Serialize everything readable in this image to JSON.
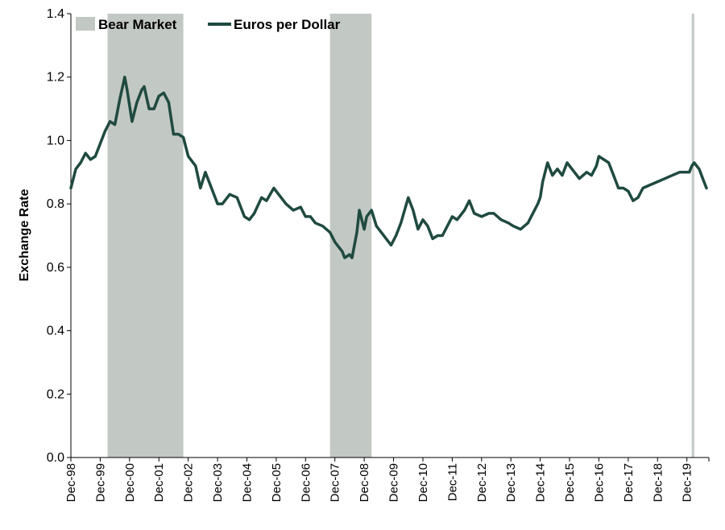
{
  "chart_data": {
    "type": "line",
    "title": "",
    "xlabel": "",
    "ylabel": "Exchange Rate",
    "ylim": [
      0,
      1.4
    ],
    "yticks": [
      0.0,
      0.2,
      0.4,
      0.6,
      0.8,
      1.0,
      1.2,
      1.4
    ],
    "ytick_labels": [
      "0.0",
      "0.2",
      "0.4",
      "0.6",
      "0.8",
      "1.0",
      "1.2",
      "1.4"
    ],
    "xlim": [
      "1998-12",
      "2020-09"
    ],
    "xticks": [
      {
        "date": "1998-12",
        "label": "Dec-98"
      },
      {
        "date": "1999-12",
        "label": "Dec-99"
      },
      {
        "date": "2000-12",
        "label": "Dec-00"
      },
      {
        "date": "2001-12",
        "label": "Dec-01"
      },
      {
        "date": "2002-12",
        "label": "Dec-02"
      },
      {
        "date": "2003-12",
        "label": "Dec-03"
      },
      {
        "date": "2004-12",
        "label": "Dec-04"
      },
      {
        "date": "2005-12",
        "label": "Dec-05"
      },
      {
        "date": "2006-12",
        "label": "Dec-06"
      },
      {
        "date": "2007-12",
        "label": "Dec-07"
      },
      {
        "date": "2008-12",
        "label": "Dec-08"
      },
      {
        "date": "2009-12",
        "label": "Dec-09"
      },
      {
        "date": "2010-12",
        "label": "Dec-10"
      },
      {
        "date": "2011-12",
        "label": "Dec-11"
      },
      {
        "date": "2012-12",
        "label": "Dec-12"
      },
      {
        "date": "2013-12",
        "label": "Dec-13"
      },
      {
        "date": "2014-12",
        "label": "Dec-14"
      },
      {
        "date": "2015-12",
        "label": "Dec-15"
      },
      {
        "date": "2016-12",
        "label": "Dec-16"
      },
      {
        "date": "2017-12",
        "label": "Dec-17"
      },
      {
        "date": "2018-12",
        "label": "Dec-18"
      },
      {
        "date": "2019-12",
        "label": "Dec-19"
      }
    ],
    "legend": {
      "placement": "top-left",
      "entries": [
        {
          "label": "Bear Market",
          "kind": "area",
          "color": "#c2c8c3"
        },
        {
          "label": "Euros per Dollar",
          "kind": "line",
          "color": "#1f4a40"
        }
      ]
    },
    "bear_markets": [
      {
        "start": "2000-03",
        "end": "2002-10"
      },
      {
        "start": "2007-10",
        "end": "2009-03"
      },
      {
        "start": "2020-02",
        "end": "2020-03"
      }
    ],
    "series": [
      {
        "name": "Euros per Dollar",
        "color": "#1f4a40",
        "points": [
          [
            "1998-12",
            0.85
          ],
          [
            "1999-02",
            0.91
          ],
          [
            "1999-04",
            0.93
          ],
          [
            "1999-06",
            0.96
          ],
          [
            "1999-08",
            0.94
          ],
          [
            "1999-10",
            0.95
          ],
          [
            "1999-12",
            0.99
          ],
          [
            "2000-02",
            1.03
          ],
          [
            "2000-04",
            1.06
          ],
          [
            "2000-06",
            1.05
          ],
          [
            "2000-08",
            1.13
          ],
          [
            "2000-10",
            1.2
          ],
          [
            "2000-11",
            1.16
          ],
          [
            "2001-01",
            1.06
          ],
          [
            "2001-03",
            1.12
          ],
          [
            "2001-05",
            1.16
          ],
          [
            "2001-06",
            1.17
          ],
          [
            "2001-08",
            1.1
          ],
          [
            "2001-10",
            1.1
          ],
          [
            "2001-12",
            1.14
          ],
          [
            "2002-02",
            1.15
          ],
          [
            "2002-04",
            1.12
          ],
          [
            "2002-06",
            1.02
          ],
          [
            "2002-08",
            1.02
          ],
          [
            "2002-10",
            1.01
          ],
          [
            "2002-12",
            0.95
          ],
          [
            "2003-03",
            0.92
          ],
          [
            "2003-05",
            0.85
          ],
          [
            "2003-07",
            0.9
          ],
          [
            "2003-09",
            0.86
          ],
          [
            "2003-12",
            0.8
          ],
          [
            "2004-02",
            0.8
          ],
          [
            "2004-05",
            0.83
          ],
          [
            "2004-08",
            0.82
          ],
          [
            "2004-11",
            0.76
          ],
          [
            "2005-01",
            0.75
          ],
          [
            "2005-03",
            0.77
          ],
          [
            "2005-06",
            0.82
          ],
          [
            "2005-08",
            0.81
          ],
          [
            "2005-11",
            0.85
          ],
          [
            "2006-01",
            0.83
          ],
          [
            "2006-04",
            0.8
          ],
          [
            "2006-07",
            0.78
          ],
          [
            "2006-10",
            0.79
          ],
          [
            "2006-12",
            0.76
          ],
          [
            "2007-02",
            0.76
          ],
          [
            "2007-04",
            0.74
          ],
          [
            "2007-07",
            0.73
          ],
          [
            "2007-10",
            0.71
          ],
          [
            "2007-12",
            0.68
          ],
          [
            "2008-03",
            0.65
          ],
          [
            "2008-04",
            0.63
          ],
          [
            "2008-06",
            0.64
          ],
          [
            "2008-07",
            0.63
          ],
          [
            "2008-09",
            0.71
          ],
          [
            "2008-10",
            0.78
          ],
          [
            "2008-12",
            0.72
          ],
          [
            "2009-01",
            0.76
          ],
          [
            "2009-03",
            0.78
          ],
          [
            "2009-05",
            0.73
          ],
          [
            "2009-07",
            0.71
          ],
          [
            "2009-09",
            0.69
          ],
          [
            "2009-11",
            0.67
          ],
          [
            "2010-01",
            0.7
          ],
          [
            "2010-03",
            0.74
          ],
          [
            "2010-06",
            0.82
          ],
          [
            "2010-08",
            0.78
          ],
          [
            "2010-10",
            0.72
          ],
          [
            "2010-12",
            0.75
          ],
          [
            "2011-02",
            0.73
          ],
          [
            "2011-04",
            0.69
          ],
          [
            "2011-06",
            0.7
          ],
          [
            "2011-08",
            0.7
          ],
          [
            "2011-10",
            0.73
          ],
          [
            "2011-12",
            0.76
          ],
          [
            "2012-02",
            0.75
          ],
          [
            "2012-05",
            0.78
          ],
          [
            "2012-07",
            0.81
          ],
          [
            "2012-09",
            0.77
          ],
          [
            "2012-12",
            0.76
          ],
          [
            "2013-03",
            0.77
          ],
          [
            "2013-05",
            0.77
          ],
          [
            "2013-08",
            0.75
          ],
          [
            "2013-11",
            0.74
          ],
          [
            "2014-01",
            0.73
          ],
          [
            "2014-04",
            0.72
          ],
          [
            "2014-07",
            0.74
          ],
          [
            "2014-09",
            0.77
          ],
          [
            "2014-11",
            0.8
          ],
          [
            "2014-12",
            0.82
          ],
          [
            "2015-01",
            0.87
          ],
          [
            "2015-03",
            0.93
          ],
          [
            "2015-05",
            0.89
          ],
          [
            "2015-07",
            0.91
          ],
          [
            "2015-09",
            0.89
          ],
          [
            "2015-11",
            0.93
          ],
          [
            "2015-12",
            0.92
          ],
          [
            "2016-02",
            0.9
          ],
          [
            "2016-04",
            0.88
          ],
          [
            "2016-07",
            0.9
          ],
          [
            "2016-09",
            0.89
          ],
          [
            "2016-11",
            0.92
          ],
          [
            "2016-12",
            0.95
          ],
          [
            "2017-02",
            0.94
          ],
          [
            "2017-04",
            0.93
          ],
          [
            "2017-06",
            0.89
          ],
          [
            "2017-08",
            0.85
          ],
          [
            "2017-10",
            0.85
          ],
          [
            "2017-12",
            0.84
          ],
          [
            "2018-02",
            0.81
          ],
          [
            "2018-04",
            0.82
          ],
          [
            "2018-06",
            0.85
          ],
          [
            "2018-09",
            0.86
          ],
          [
            "2018-12",
            0.87
          ],
          [
            "2019-03",
            0.88
          ],
          [
            "2019-06",
            0.89
          ],
          [
            "2019-09",
            0.9
          ],
          [
            "2019-12",
            0.9
          ],
          [
            "2020-01",
            0.9
          ],
          [
            "2020-02",
            0.92
          ],
          [
            "2020-03",
            0.93
          ],
          [
            "2020-04",
            0.92
          ],
          [
            "2020-05",
            0.91
          ],
          [
            "2020-06",
            0.89
          ],
          [
            "2020-07",
            0.87
          ],
          [
            "2020-08",
            0.85
          ]
        ]
      }
    ]
  }
}
